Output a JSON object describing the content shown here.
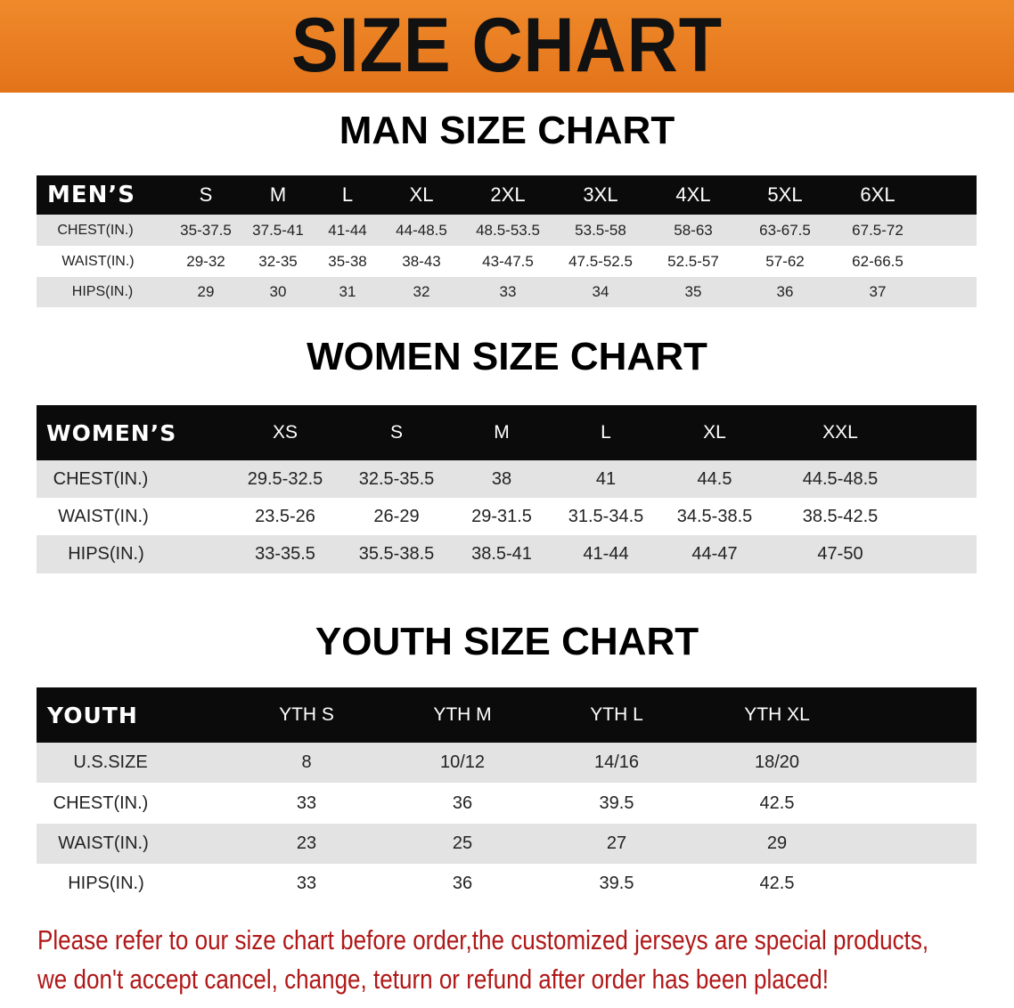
{
  "banner": {
    "title": "SIZE CHART",
    "color": "#e8781a"
  },
  "men": {
    "title": "MAN SIZE CHART",
    "header": [
      "MEN’S",
      "S",
      "M",
      "L",
      "XL",
      "2XL",
      "3XL",
      "4XL",
      "5XL",
      "6XL"
    ],
    "rows": [
      [
        "CHEST(IN.)",
        "35-37.5",
        "37.5-41",
        "41-44",
        "44-48.5",
        "48.5-53.5",
        "53.5-58",
        "58-63",
        "63-67.5",
        "67.5-72"
      ],
      [
        "WAIST(IN.)",
        "29-32",
        "32-35",
        "35-38",
        "38-43",
        "43-47.5",
        "47.5-52.5",
        "52.5-57",
        "57-62",
        "62-66.5"
      ],
      [
        "HIPS(IN.)",
        "29",
        "30",
        "31",
        "32",
        "33",
        "34",
        "35",
        "36",
        "37"
      ]
    ]
  },
  "women": {
    "title": "WOMEN SIZE CHART",
    "header": [
      "WOMEN’S",
      "XS",
      "S",
      "M",
      "L",
      "XL",
      "XXL"
    ],
    "rows": [
      [
        "CHEST(IN.)",
        "29.5-32.5",
        "32.5-35.5",
        "38",
        "41",
        "44.5",
        "44.5-48.5"
      ],
      [
        "WAIST(IN.)",
        "23.5-26",
        "26-29",
        "29-31.5",
        "31.5-34.5",
        "34.5-38.5",
        "38.5-42.5"
      ],
      [
        "HIPS(IN.)",
        "33-35.5",
        "35.5-38.5",
        "38.5-41",
        "41-44",
        "44-47",
        "47-50"
      ]
    ]
  },
  "youth": {
    "title": "YOUTH SIZE CHART",
    "header": [
      "YOUTH",
      "YTH S",
      "YTH M",
      "YTH L",
      "YTH XL"
    ],
    "rows": [
      [
        "U.S.SIZE",
        "8",
        "10/12",
        "14/16",
        "18/20"
      ],
      [
        "CHEST(IN.)",
        "33",
        "36",
        "39.5",
        "42.5"
      ],
      [
        "WAIST(IN.)",
        "23",
        "25",
        "27",
        "29"
      ],
      [
        "HIPS(IN.)",
        "33",
        "36",
        "39.5",
        "42.5"
      ]
    ]
  },
  "notice": {
    "line1": "Please refer to our size chart before order,the customized jerseys are special products,",
    "line2": "we don't accept cancel, change, teturn or refund after order has been placed!",
    "color": "#b01818"
  }
}
